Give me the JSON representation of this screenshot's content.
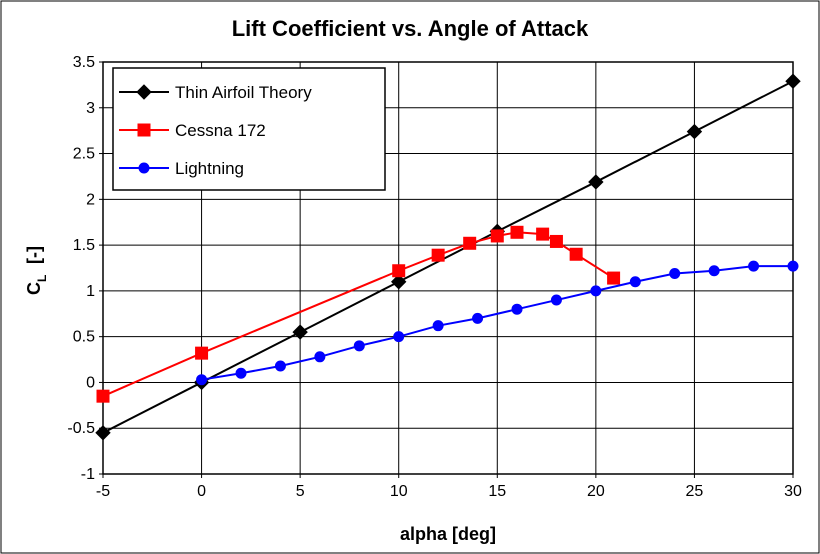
{
  "chart_data": {
    "type": "line",
    "title": "Lift Coefficient vs. Angle of Attack",
    "x_label": "alpha [deg]",
    "y_label": {
      "main": "C",
      "subscript": "L",
      "unit": "[-]"
    },
    "xlim": [
      -5,
      30
    ],
    "xticks": [
      -5,
      0,
      5,
      10,
      15,
      20,
      25,
      30
    ],
    "ylim": [
      -1,
      3.5
    ],
    "yticks": [
      -1,
      -0.5,
      0,
      0.5,
      1,
      1.5,
      2,
      2.5,
      3,
      3.5
    ],
    "grid": true,
    "legend": "upper left",
    "series": [
      {
        "name": "Thin Airfoil Theory",
        "color": "#000000",
        "marker": "diamond",
        "x": [
          -5,
          0,
          5,
          10,
          15,
          20,
          25,
          30
        ],
        "values": [
          -0.55,
          0,
          0.55,
          1.1,
          1.65,
          2.19,
          2.74,
          3.29
        ]
      },
      {
        "name": "Cessna 172",
        "color": "#ff0000",
        "marker": "square",
        "x": [
          -5,
          0,
          10,
          12,
          13.6,
          15,
          16,
          17.3,
          18,
          19,
          20.9
        ],
        "values": [
          -0.15,
          0.32,
          1.22,
          1.39,
          1.52,
          1.6,
          1.64,
          1.62,
          1.54,
          1.4,
          1.14
        ]
      },
      {
        "name": "Lightning",
        "color": "#0000ff",
        "marker": "circle",
        "x": [
          0,
          2,
          4,
          6,
          8,
          10,
          12,
          14,
          16,
          18,
          20,
          22,
          24,
          26,
          28,
          30
        ],
        "values": [
          0.03,
          0.1,
          0.18,
          0.28,
          0.4,
          0.5,
          0.62,
          0.7,
          0.8,
          0.9,
          1.0,
          1.1,
          1.19,
          1.22,
          1.27,
          1.27
        ]
      }
    ]
  }
}
